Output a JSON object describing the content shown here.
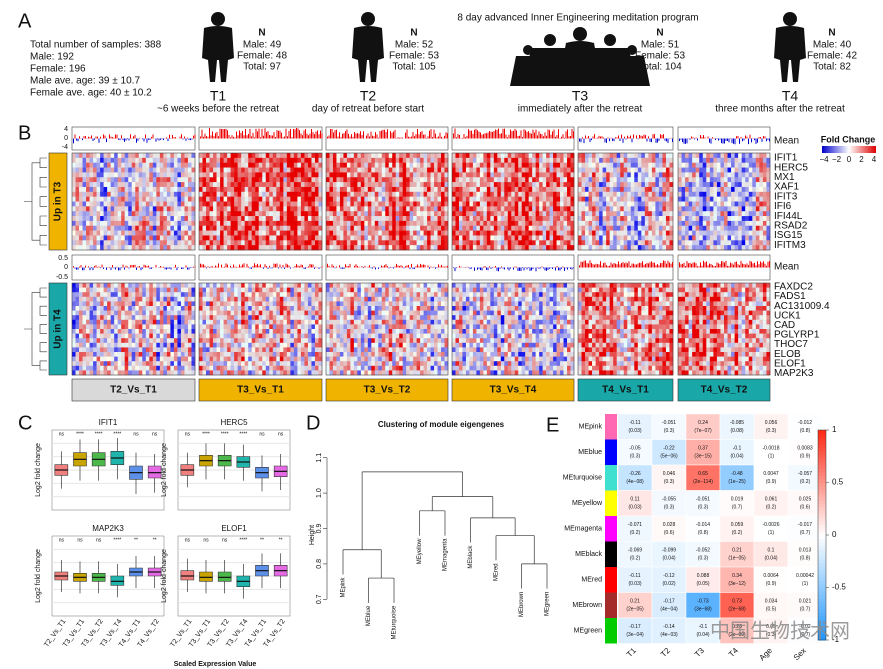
{
  "panel_letters": [
    "A",
    "B",
    "C",
    "D",
    "E"
  ],
  "panel_a": {
    "stats": [
      "Total number of samples: 388",
      "Male: 192",
      "Female: 196",
      "Male ave. age: 39 ± 10.7",
      "Female ave. age: 40 ± 10.2"
    ],
    "program": "8 day advanced Inner Engineering meditation program",
    "timepoints": [
      {
        "label": "T1",
        "desc": "~6 weeks before the retreat",
        "n": "N",
        "lines": [
          "Male: 49",
          "Female: 48",
          "Total: 97"
        ]
      },
      {
        "label": "T2",
        "desc": "day of retreat before start",
        "n": "N",
        "lines": [
          "Male: 52",
          "Female: 53",
          "Total: 105"
        ]
      },
      {
        "label": "T3",
        "desc": "immediately after the retreat",
        "n": "N",
        "lines": [
          "Male: 51",
          "Female: 53",
          "Total: 104"
        ]
      },
      {
        "label": "T4",
        "desc": "three months after the retreat",
        "n": "N",
        "lines": [
          "Male: 40",
          "Female: 42",
          "Total: 82"
        ]
      }
    ]
  },
  "panel_b": {
    "groups": [
      "Up in T3",
      "Up in T4"
    ],
    "mean": [
      "Mean",
      "Mean"
    ],
    "mean_ticks_top": [
      "4",
      "0",
      "-4"
    ],
    "mean_ticks_bottom": [
      "0.5",
      "0",
      "-0.5"
    ],
    "genes_t3": [
      "IFIT1",
      "HERC5",
      "MX1",
      "XAF1",
      "IFIT3",
      "IFI6",
      "IFI44L",
      "RSAD2",
      "ISG15",
      "IFITM3"
    ],
    "genes_t4": [
      "FAXDC2",
      "FADS1",
      "AC131009.4",
      "UCK1",
      "CAD",
      "PGLYRP1",
      "THOC7",
      "ELOB",
      "ELOF1",
      "MAP2K3"
    ],
    "comparisons": [
      "T2_Vs_T1",
      "T3_Vs_T1",
      "T3_Vs_T2",
      "T3_Vs_T4",
      "T4_Vs_T1",
      "T4_Vs_T2"
    ],
    "legend_title": "Fold Change",
    "legend_ticks": [
      "−4",
      "−2",
      "0",
      "2",
      "4"
    ]
  },
  "panel_c": {
    "ylabel": "Log2 fold change",
    "ylim": [
      -3,
      3
    ],
    "categories": [
      "T2_Vs_T1",
      "T3_Vs_T1",
      "T3_Vs_T2",
      "T3_Vs_T4",
      "T4_Vs_T1",
      "T4_Vs_T2"
    ],
    "colors": [
      "#f07f7f",
      "#c9a400",
      "#4cb84c",
      "#1fb5ac",
      "#5b8fe8",
      "#e46ae4"
    ],
    "plots": [
      {
        "title": "IFIT1",
        "sig": [
          "ns",
          "****",
          "****",
          "****",
          "ns",
          "ns"
        ],
        "boxes": [
          [
            -1.4,
            -0.4,
            0,
            0.4,
            1.4
          ],
          [
            -0.8,
            0.3,
            0.8,
            1.3,
            2.3
          ],
          [
            -0.8,
            0.3,
            0.8,
            1.3,
            2.3
          ],
          [
            -0.7,
            0.4,
            0.9,
            1.4,
            2.4
          ],
          [
            -1.8,
            -0.7,
            -0.2,
            0.3,
            1.3
          ],
          [
            -1.7,
            -0.6,
            -0.2,
            0.3,
            1.2
          ]
        ]
      },
      {
        "title": "HERC5",
        "sig": [
          "ns",
          "****",
          "****",
          "****",
          "ns",
          "ns"
        ],
        "boxes": [
          [
            -1.3,
            -0.4,
            0,
            0.4,
            1.3
          ],
          [
            -0.7,
            0.3,
            0.7,
            1.1,
            2
          ],
          [
            -0.7,
            0.3,
            0.7,
            1.1,
            2
          ],
          [
            -0.8,
            0.2,
            0.6,
            1,
            1.9
          ],
          [
            -1.6,
            -0.6,
            -0.2,
            0.2,
            1.1
          ],
          [
            -1.5,
            -0.5,
            -0.1,
            0.3,
            1.2
          ]
        ]
      },
      {
        "title": "MAP2K3",
        "sig": [
          "ns",
          "ns",
          "ns",
          "****",
          "**",
          "**"
        ],
        "boxes": [
          [
            -1.2,
            -0.3,
            0,
            0.3,
            1.2
          ],
          [
            -1.3,
            -0.4,
            -0.1,
            0.2,
            1.1
          ],
          [
            -1.3,
            -0.4,
            -0.1,
            0.2,
            1.1
          ],
          [
            -1.6,
            -0.7,
            -0.4,
            0,
            0.9
          ],
          [
            -0.9,
            0,
            0.3,
            0.6,
            1.5
          ],
          [
            -0.9,
            0,
            0.3,
            0.6,
            1.5
          ]
        ]
      },
      {
        "title": "ELOF1",
        "sig": [
          "ns",
          "ns",
          "ns",
          "****",
          "**",
          "**"
        ],
        "boxes": [
          [
            -1.2,
            -0.3,
            0,
            0.4,
            1.3
          ],
          [
            -1.3,
            -0.4,
            -0.1,
            0.3,
            1.2
          ],
          [
            -1.3,
            -0.4,
            -0.1,
            0.3,
            1.2
          ],
          [
            -1.7,
            -0.8,
            -0.4,
            0,
            0.9
          ],
          [
            -0.9,
            0,
            0.4,
            0.8,
            1.7
          ],
          [
            -0.9,
            0,
            0.4,
            0.8,
            1.7
          ]
        ]
      }
    ],
    "footer": "Scaled Expression Value"
  },
  "panel_d": {
    "title": "Clustering of module eigengenes",
    "ylabel": "Height",
    "ylim": [
      0.65,
      1.15
    ],
    "yticks": [
      0.7,
      0.8,
      0.9,
      {
        "value": 1,
        "label": "1.0"
      },
      1.1
    ],
    "leaves": [
      "MEpink",
      "MEblue",
      "MEturquoise",
      "MEyellow",
      "MEmagenta",
      "MEblack",
      "MEred",
      "MEbrown",
      "MEgreen"
    ],
    "merges": [
      [
        1,
        2,
        0.76
      ],
      [
        0,
        9,
        0.84
      ],
      [
        7,
        8,
        0.8
      ],
      [
        6,
        11,
        0.88
      ],
      [
        5,
        12,
        0.93
      ],
      [
        3,
        4,
        0.95
      ],
      [
        14,
        13,
        0.99
      ],
      [
        10,
        15,
        1.06
      ]
    ]
  },
  "panel_e": {
    "rows": [
      "MEpink",
      "MEblue",
      "MEturquoise",
      "MEyellow",
      "MEmagenta",
      "MEblack",
      "MEred",
      "MEbrown",
      "MEgreen"
    ],
    "row_colors": [
      "#ff69b4",
      "#0000ff",
      "#40e0d0",
      "#ffff00",
      "#ff00ff",
      "#000000",
      "#ff0000",
      "#a52a2a",
      "#00cc00"
    ],
    "cols": [
      "T1",
      "T2",
      "T3",
      "T4",
      "Age",
      "Sex"
    ],
    "values": [
      [
        -0.11,
        -0.051,
        0.24,
        -0.085,
        0.056,
        -0.012
      ],
      [
        -0.05,
        -0.22,
        0.37,
        -0.1,
        -0.0018,
        0.0083
      ],
      [
        -0.26,
        0.046,
        0.65,
        -0.48,
        0.0047,
        -0.057
      ],
      [
        0.11,
        -0.055,
        -0.051,
        0.019,
        0.061,
        0.025
      ],
      [
        -0.071,
        0.028,
        -0.014,
        0.059,
        -0.0026,
        -0.017
      ],
      [
        -0.069,
        -0.099,
        -0.052,
        0.21,
        0.1,
        0.013
      ],
      [
        -0.11,
        -0.12,
        0.088,
        0.34,
        0.0064,
        0.00042
      ],
      [
        0.21,
        -0.17,
        -0.73,
        0.73,
        0.034,
        0.021
      ],
      [
        -0.17,
        -0.14,
        -0.1,
        0.28,
        0.05,
        -0.02
      ]
    ],
    "p_labels": [
      [
        "(0.03)",
        "(0.3)",
        "(7e−07)",
        "(0.08)",
        "(0.3)",
        "(0.8)"
      ],
      [
        "(0.3)",
        "(5e−06)",
        "(3e−15)",
        "(0.04)",
        "(1)",
        "(0.9)"
      ],
      [
        "(4e−08)",
        "(0.3)",
        "(2e−114)",
        "(1e−25)",
        "(0.9)",
        "(0.2)"
      ],
      [
        "(0.03)",
        "(0.3)",
        "(0.3)",
        "(0.7)",
        "(0.2)",
        "(0.6)"
      ],
      [
        "(0.2)",
        "(0.6)",
        "(0.8)",
        "(0.2)",
        "(1)",
        "(0.7)"
      ],
      [
        "(0.2)",
        "(0.04)",
        "(0.3)",
        "(1e−05)",
        "(0.04)",
        "(0.8)"
      ],
      [
        "(0.03)",
        "(0.02)",
        "(0.05)",
        "(3e−12)",
        "(0.9)",
        "(1)"
      ],
      [
        "(2e−05)",
        "(4e−04)",
        "(3e−68)",
        "(2e−68)",
        "(0.5)",
        "(0.7)"
      ],
      [
        "(3e−04)",
        "(4e−03)",
        "(0.04)",
        "(2e−09)",
        "(0.3)",
        "(0.7)"
      ]
    ],
    "clim": [
      -1,
      1
    ],
    "cticks": [
      1,
      0.5,
      0,
      -0.5,
      -1
    ]
  },
  "watermark": "中国生物技术网"
}
